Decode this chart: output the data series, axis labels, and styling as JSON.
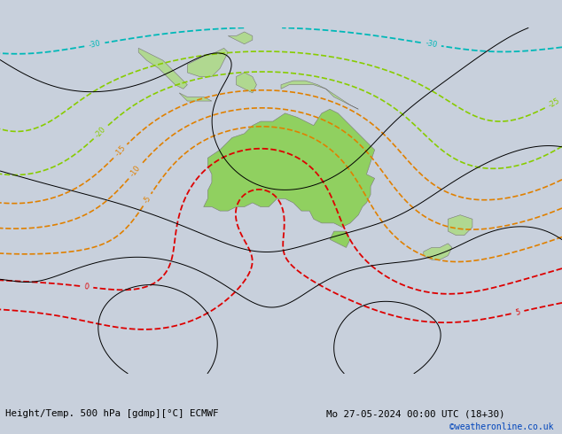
{
  "title_left": "Height/Temp. 500 hPa [gdmp][°C] ECMWF",
  "title_right": "Mo 27-05-2024 00:00 UTC (18+30)",
  "credit": "©weatheronline.co.uk",
  "bg_color": "#c8d0dc",
  "australia_fill": "#90d060",
  "land_fill": "#b0d890",
  "ocean_color": "#c0ccd8",
  "z500_color": "#000000",
  "temp_orange_color": "#e08000",
  "temp_red_color": "#dd0000",
  "temp_cyan_color": "#00b8b8",
  "temp_blue_color": "#0044ee",
  "temp_ygreen_color": "#88cc00",
  "footer_text_color": "#000000",
  "credit_color": "#0044bb",
  "lon_min": 62,
  "lon_max": 200,
  "lat_min": -75,
  "lat_max": 10
}
